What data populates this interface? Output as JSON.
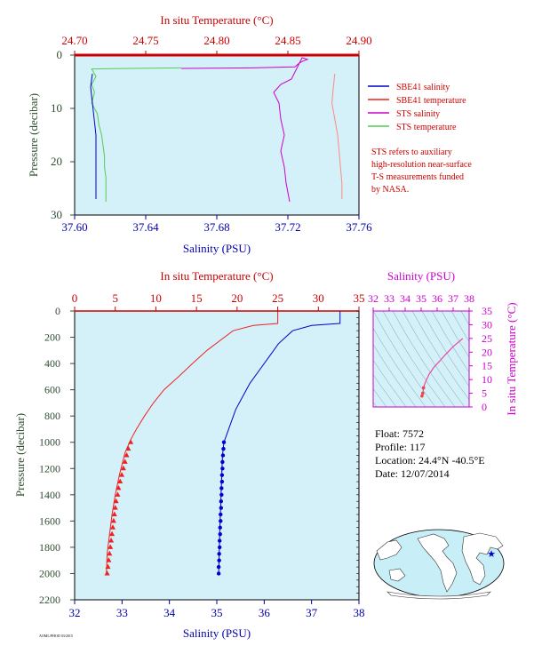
{
  "colors": {
    "temperature_axis": "#cc0000",
    "salinity_axis": "#0000aa",
    "pressure_axis": "#2e4d2e",
    "ts_axis": "#cc00cc",
    "plot_bg": "#d4f0f8",
    "sbe_salinity": "#0000cc",
    "sbe_temperature": "#ee2222",
    "sts_salinity": "#cc00cc",
    "sts_temperature": "#55cc55",
    "sts_temperature_alt": "#ff8888",
    "land": "#ffffff",
    "ocean": "#c8eef7"
  },
  "legend": {
    "items": [
      {
        "label": "SBE41 salinity",
        "color": "#0000cc"
      },
      {
        "label": "SBE41 temperature",
        "color": "#ee2222"
      },
      {
        "label": "STS salinity",
        "color": "#cc00cc"
      },
      {
        "label": "STS temperature",
        "color": "#55cc55"
      }
    ],
    "note_lines": [
      "STS refers to auxiliary",
      "high-resolution near-surface",
      "T-S measurements funded",
      "by NASA."
    ]
  },
  "float_info": {
    "float": "Float:  7572",
    "profile": "Profile:  117",
    "location": "Location:  24.4°N  -40.5°E",
    "date": "Date:  12/07/2014"
  },
  "footer_text": "AOML/PHOD 03/2015",
  "chart_data": [
    {
      "id": "upper",
      "type": "line",
      "top_xlabel": "In situ Temperature (°C)",
      "top_xlim": [
        24.7,
        24.9
      ],
      "top_ticks": [
        "24.70",
        "24.75",
        "24.80",
        "24.85",
        "24.90"
      ],
      "bottom_xlabel": "Salinity (PSU)",
      "bottom_xlim": [
        37.6,
        37.76
      ],
      "bottom_ticks": [
        "37.60",
        "37.64",
        "37.68",
        "37.72",
        "37.76"
      ],
      "ylabel": "Pressure (decibar)",
      "ylim": [
        0,
        30
      ],
      "yticks": [
        "0",
        "10",
        "20",
        "30"
      ],
      "series": [
        {
          "name": "STS salinity",
          "axis": "bottom",
          "points": [
            [
              37.66,
              2.5
            ],
            [
              37.7,
              2.4
            ],
            [
              37.724,
              2.2
            ],
            [
              37.726,
              1.6
            ],
            [
              37.728,
              1.2
            ],
            [
              37.731,
              0.8
            ],
            [
              37.728,
              0.5
            ],
            [
              37.722,
              4.5
            ],
            [
              37.716,
              5.5
            ],
            [
              37.712,
              7
            ],
            [
              37.715,
              9
            ],
            [
              37.716,
              12
            ],
            [
              37.718,
              15
            ],
            [
              37.716,
              18
            ],
            [
              37.718,
              21
            ],
            [
              37.719,
              24
            ],
            [
              37.721,
              27.5
            ]
          ]
        },
        {
          "name": "STS temperature",
          "axis": "top",
          "points": [
            [
              24.775,
              2.4
            ],
            [
              24.74,
              2.5
            ],
            [
              24.712,
              2.6
            ],
            [
              24.715,
              4
            ],
            [
              24.712,
              5.5
            ],
            [
              24.714,
              7
            ],
            [
              24.712,
              9
            ],
            [
              24.716,
              11
            ],
            [
              24.717,
              13
            ],
            [
              24.719,
              15
            ],
            [
              24.72,
              17
            ],
            [
              24.721,
              19
            ],
            [
              24.721,
              21
            ],
            [
              24.722,
              23
            ],
            [
              24.722,
              25
            ],
            [
              24.722,
              27.5
            ]
          ]
        },
        {
          "name": "SBE41 salinity",
          "axis": "bottom",
          "points": [
            [
              37.61,
              3.5
            ],
            [
              37.609,
              6
            ],
            [
              37.61,
              9
            ],
            [
              37.611,
              12
            ],
            [
              37.612,
              15
            ],
            [
              37.612,
              18
            ],
            [
              37.612,
              21
            ],
            [
              37.612,
              24
            ],
            [
              37.612,
              27
            ]
          ]
        },
        {
          "name": "SBE41 temperature",
          "axis": "top",
          "points": [
            [
              24.883,
              3.5
            ],
            [
              24.882,
              6
            ],
            [
              24.881,
              9
            ],
            [
              24.883,
              12
            ],
            [
              24.885,
              15
            ],
            [
              24.886,
              18
            ],
            [
              24.887,
              21
            ],
            [
              24.888,
              24
            ],
            [
              24.888,
              27
            ]
          ]
        }
      ]
    },
    {
      "id": "main",
      "type": "line",
      "top_xlabel": "In situ Temperature (°C)",
      "top_xlim": [
        0,
        35
      ],
      "top_ticks": [
        "0",
        "5",
        "10",
        "15",
        "20",
        "25",
        "30",
        "35"
      ],
      "bottom_xlabel": "Salinity (PSU)",
      "bottom_xlim": [
        32,
        38
      ],
      "bottom_ticks": [
        "32",
        "33",
        "34",
        "35",
        "36",
        "37",
        "38"
      ],
      "ylabel": "Pressure (decibar)",
      "ylim": [
        0,
        2200
      ],
      "yticks": [
        "0",
        "200",
        "400",
        "600",
        "800",
        "1000",
        "1200",
        "1400",
        "1600",
        "1800",
        "2000",
        "2200"
      ],
      "series": [
        {
          "name": "SBE41 temperature",
          "axis": "top",
          "points": [
            [
              25,
              0
            ],
            [
              25,
              95
            ],
            [
              22,
              110
            ],
            [
              19.5,
              150
            ],
            [
              18,
              220
            ],
            [
              16.3,
              300
            ],
            [
              14.5,
              400
            ],
            [
              12.8,
              500
            ],
            [
              11,
              600
            ],
            [
              9.7,
              700
            ],
            [
              8.6,
              800
            ],
            [
              7.6,
              900
            ],
            [
              6.9,
              980
            ],
            [
              6.2,
              1080
            ],
            [
              5.5,
              1250
            ],
            [
              5.0,
              1400
            ],
            [
              4.6,
              1550
            ],
            [
              4.3,
              1700
            ],
            [
              4.0,
              1850
            ],
            [
              3.9,
              2000
            ]
          ]
        },
        {
          "name": "SBE41 salinity",
          "axis": "bottom",
          "points": [
            [
              37.6,
              0
            ],
            [
              37.6,
              95
            ],
            [
              37.0,
              110
            ],
            [
              36.6,
              150
            ],
            [
              36.3,
              250
            ],
            [
              36.1,
              350
            ],
            [
              35.9,
              450
            ],
            [
              35.7,
              550
            ],
            [
              35.55,
              650
            ],
            [
              35.4,
              750
            ],
            [
              35.3,
              850
            ],
            [
              35.2,
              950
            ],
            [
              35.15,
              1000
            ],
            [
              35.12,
              1100
            ],
            [
              35.1,
              1300
            ],
            [
              35.08,
              1500
            ],
            [
              35.06,
              1700
            ],
            [
              35.05,
              1850
            ],
            [
              35.04,
              2000
            ]
          ]
        }
      ],
      "temperature_markers": [
        [
          6.9,
          1000
        ],
        [
          6.6,
          1050
        ],
        [
          6.4,
          1100
        ],
        [
          6.2,
          1150
        ],
        [
          6.0,
          1200
        ],
        [
          5.8,
          1250
        ],
        [
          5.6,
          1300
        ],
        [
          5.4,
          1350
        ],
        [
          5.3,
          1400
        ],
        [
          5.1,
          1450
        ],
        [
          5.0,
          1500
        ],
        [
          4.9,
          1550
        ],
        [
          4.8,
          1600
        ],
        [
          4.7,
          1650
        ],
        [
          4.6,
          1700
        ],
        [
          4.5,
          1750
        ],
        [
          4.4,
          1800
        ],
        [
          4.3,
          1850
        ],
        [
          4.2,
          1900
        ],
        [
          4.1,
          1950
        ],
        [
          4.0,
          2000
        ]
      ],
      "salinity_markers": [
        [
          35.15,
          1000
        ],
        [
          35.14,
          1050
        ],
        [
          35.13,
          1100
        ],
        [
          35.12,
          1150
        ],
        [
          35.12,
          1200
        ],
        [
          35.11,
          1250
        ],
        [
          35.11,
          1300
        ],
        [
          35.1,
          1350
        ],
        [
          35.1,
          1400
        ],
        [
          35.09,
          1450
        ],
        [
          35.09,
          1500
        ],
        [
          35.08,
          1550
        ],
        [
          35.08,
          1600
        ],
        [
          35.07,
          1650
        ],
        [
          35.07,
          1700
        ],
        [
          35.06,
          1750
        ],
        [
          35.06,
          1800
        ],
        [
          35.05,
          1850
        ],
        [
          35.05,
          1900
        ],
        [
          35.04,
          1950
        ],
        [
          35.04,
          2000
        ]
      ]
    },
    {
      "id": "ts",
      "type": "line",
      "top_xlabel": "Salinity (PSU)",
      "xlim": [
        32,
        38
      ],
      "xticks": [
        "32",
        "33",
        "34",
        "35",
        "36",
        "37",
        "38"
      ],
      "right_ylabel": "In situ Temperature (°C)",
      "ylim": [
        0,
        35
      ],
      "yticks": [
        "0",
        "5",
        "10",
        "15",
        "20",
        "25",
        "30",
        "35"
      ],
      "points": [
        [
          37.6,
          25
        ],
        [
          37.0,
          22
        ],
        [
          36.5,
          19
        ],
        [
          36.2,
          17
        ],
        [
          35.8,
          14.5
        ],
        [
          35.5,
          12
        ],
        [
          35.3,
          9.5
        ],
        [
          35.2,
          8
        ],
        [
          35.15,
          7
        ],
        [
          35.1,
          5
        ],
        [
          35.05,
          4
        ]
      ]
    }
  ]
}
